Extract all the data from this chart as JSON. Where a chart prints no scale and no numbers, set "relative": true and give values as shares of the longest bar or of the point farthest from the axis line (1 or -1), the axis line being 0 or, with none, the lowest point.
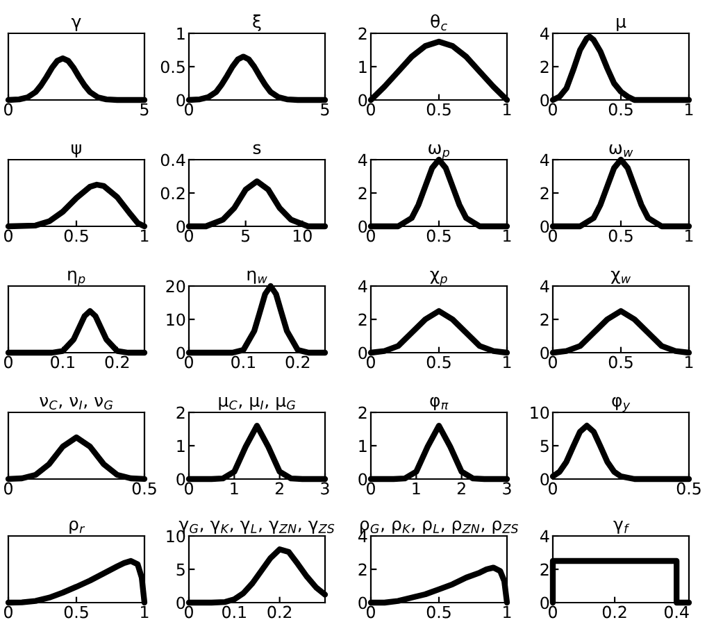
{
  "chart_data": [
    {
      "type": "line",
      "title": "γ",
      "relative": true,
      "tick_labels": "x",
      "color": "#000000",
      "xlim": [
        0,
        5
      ],
      "xticks": [
        0,
        5
      ],
      "x": [
        0,
        0.4,
        0.7,
        1.0,
        1.2,
        1.4,
        1.6,
        1.8,
        2.0,
        2.2,
        2.4,
        2.6,
        2.8,
        3.0,
        3.3,
        3.6,
        4,
        5
      ],
      "values": [
        0,
        0.015,
        0.06,
        0.19,
        0.35,
        0.55,
        0.77,
        0.94,
        1,
        0.94,
        0.77,
        0.55,
        0.35,
        0.19,
        0.06,
        0.015,
        0,
        0
      ]
    },
    {
      "type": "line",
      "title": "ξ",
      "color": "#000000",
      "xlim": [
        0,
        5
      ],
      "xticks": [
        0,
        5
      ],
      "ylim": [
        0,
        1
      ],
      "yticks": [
        0,
        0.5,
        1
      ],
      "x": [
        0,
        0.4,
        0.7,
        1.0,
        1.2,
        1.4,
        1.6,
        1.8,
        2.0,
        2.2,
        2.4,
        2.6,
        2.8,
        3.0,
        3.3,
        3.6,
        4,
        5
      ],
      "values": [
        0,
        0.01,
        0.04,
        0.12,
        0.23,
        0.36,
        0.5,
        0.61,
        0.65,
        0.61,
        0.5,
        0.36,
        0.23,
        0.12,
        0.04,
        0.01,
        0,
        0
      ]
    },
    {
      "type": "line",
      "title": "θ$_{c}$",
      "color": "#000000",
      "xlim": [
        0,
        1
      ],
      "xticks": [
        0,
        0.5,
        1
      ],
      "ylim": [
        0,
        2
      ],
      "yticks": [
        0,
        1,
        2
      ],
      "x": [
        0,
        0.1,
        0.2,
        0.3,
        0.4,
        0.5,
        0.6,
        0.7,
        0.8,
        0.9,
        1
      ],
      "values": [
        0,
        0.4,
        0.85,
        1.3,
        1.62,
        1.75,
        1.62,
        1.3,
        0.85,
        0.4,
        0
      ]
    },
    {
      "type": "line",
      "title": "μ",
      "color": "#000000",
      "xlim": [
        0,
        1
      ],
      "xticks": [
        0,
        0.5,
        1
      ],
      "ylim": [
        0,
        4
      ],
      "yticks": [
        0,
        2,
        4
      ],
      "x": [
        0,
        0.05,
        0.1,
        0.15,
        0.2,
        0.25,
        0.27,
        0.3,
        0.35,
        0.4,
        0.45,
        0.5,
        0.55,
        0.6,
        0.7,
        1
      ],
      "values": [
        0,
        0.2,
        0.7,
        1.8,
        3.0,
        3.7,
        3.8,
        3.6,
        2.9,
        1.9,
        1.0,
        0.5,
        0.2,
        0,
        0,
        0
      ]
    },
    {
      "type": "line",
      "title": "ψ",
      "relative": true,
      "tick_labels": "x",
      "color": "#000000",
      "xlim": [
        0,
        1
      ],
      "xticks": [
        0,
        0.5,
        1
      ],
      "x": [
        0,
        0.2,
        0.3,
        0.4,
        0.5,
        0.6,
        0.65,
        0.7,
        0.8,
        0.9,
        0.95,
        1
      ],
      "values": [
        0,
        0.02,
        0.12,
        0.35,
        0.68,
        0.95,
        1,
        0.97,
        0.7,
        0.28,
        0.08,
        0
      ]
    },
    {
      "type": "line",
      "title": "s",
      "color": "#000000",
      "xlim": [
        0,
        12
      ],
      "xticks": [
        0,
        5,
        10
      ],
      "ylim": [
        0,
        0.4
      ],
      "yticks": [
        0,
        0.2,
        0.4
      ],
      "x": [
        0,
        1.5,
        3,
        4,
        5,
        6,
        7,
        8,
        9,
        10.5,
        12
      ],
      "values": [
        0,
        0,
        0.04,
        0.11,
        0.22,
        0.27,
        0.22,
        0.11,
        0.04,
        0,
        0
      ]
    },
    {
      "type": "line",
      "title": "ω$_{p}$",
      "color": "#000000",
      "xlim": [
        0,
        1
      ],
      "xticks": [
        0,
        0.5,
        1
      ],
      "ylim": [
        0,
        4
      ],
      "yticks": [
        0,
        2,
        4
      ],
      "x": [
        0,
        0.2,
        0.3,
        0.35,
        0.4,
        0.45,
        0.5,
        0.55,
        0.6,
        0.65,
        0.7,
        0.8,
        1
      ],
      "values": [
        0,
        0,
        0.5,
        1.3,
        2.4,
        3.5,
        4.0,
        3.5,
        2.4,
        1.3,
        0.5,
        0,
        0
      ]
    },
    {
      "type": "line",
      "title": "ω$_{w}$",
      "color": "#000000",
      "xlim": [
        0,
        1
      ],
      "xticks": [
        0,
        0.5,
        1
      ],
      "ylim": [
        0,
        4
      ],
      "yticks": [
        0,
        2,
        4
      ],
      "x": [
        0,
        0.2,
        0.3,
        0.35,
        0.4,
        0.45,
        0.5,
        0.55,
        0.6,
        0.65,
        0.7,
        0.8,
        1
      ],
      "values": [
        0,
        0,
        0.5,
        1.3,
        2.4,
        3.5,
        4.0,
        3.5,
        2.4,
        1.3,
        0.5,
        0,
        0
      ]
    },
    {
      "type": "line",
      "title": "η$_{p}$",
      "relative": true,
      "tick_labels": "x",
      "color": "#000000",
      "xlim": [
        0,
        0.25
      ],
      "xticks": [
        0,
        0.1,
        0.2
      ],
      "x": [
        0,
        0.08,
        0.1,
        0.12,
        0.13,
        0.14,
        0.15,
        0.16,
        0.17,
        0.18,
        0.2,
        0.22,
        0.25
      ],
      "values": [
        0,
        0,
        0.04,
        0.32,
        0.6,
        0.88,
        1,
        0.88,
        0.6,
        0.32,
        0.04,
        0,
        0
      ]
    },
    {
      "type": "line",
      "title": "η$_{w}$",
      "color": "#000000",
      "xlim": [
        0,
        0.25
      ],
      "xticks": [
        0,
        0.1,
        0.2
      ],
      "ylim": [
        0,
        20
      ],
      "yticks": [
        0,
        10,
        20
      ],
      "x": [
        0,
        0.08,
        0.1,
        0.12,
        0.13,
        0.14,
        0.15,
        0.16,
        0.17,
        0.18,
        0.2,
        0.22,
        0.25
      ],
      "values": [
        0,
        0,
        0.8,
        6.5,
        12,
        17.6,
        20,
        17.6,
        12,
        6.5,
        0.8,
        0,
        0
      ]
    },
    {
      "type": "line",
      "title": "χ$_{p}$",
      "color": "#000000",
      "xlim": [
        0,
        1
      ],
      "xticks": [
        0,
        0.5,
        1
      ],
      "ylim": [
        0,
        4
      ],
      "yticks": [
        0,
        2,
        4
      ],
      "x": [
        0,
        0.1,
        0.2,
        0.3,
        0.4,
        0.5,
        0.6,
        0.7,
        0.8,
        0.9,
        1
      ],
      "values": [
        0,
        0.1,
        0.4,
        1.2,
        2.0,
        2.5,
        2.0,
        1.2,
        0.4,
        0.1,
        0
      ]
    },
    {
      "type": "line",
      "title": "χ$_{w}$",
      "color": "#000000",
      "xlim": [
        0,
        1
      ],
      "xticks": [
        0,
        0.5,
        1
      ],
      "ylim": [
        0,
        4
      ],
      "yticks": [
        0,
        2,
        4
      ],
      "x": [
        0,
        0.1,
        0.2,
        0.3,
        0.4,
        0.5,
        0.6,
        0.7,
        0.8,
        0.9,
        1
      ],
      "values": [
        0,
        0.1,
        0.4,
        1.2,
        2.0,
        2.5,
        2.0,
        1.2,
        0.4,
        0.1,
        0
      ]
    },
    {
      "type": "line",
      "title": "ν$_{C}$, ν$_{I}$, ν$_{G}$",
      "relative": true,
      "tick_labels": "x",
      "color": "#000000",
      "xlim": [
        0,
        0.5
      ],
      "xticks": [
        0,
        0.5
      ],
      "x": [
        0,
        0.05,
        0.1,
        0.15,
        0.2,
        0.25,
        0.3,
        0.35,
        0.4,
        0.45,
        0.5
      ],
      "values": [
        0.002,
        0.017,
        0.1,
        0.36,
        0.78,
        1,
        0.78,
        0.36,
        0.1,
        0.017,
        0.002
      ]
    },
    {
      "type": "line",
      "title": "μ$_{C}$, μ$_{I}$, μ$_{G}$",
      "color": "#000000",
      "xlim": [
        0,
        3
      ],
      "xticks": [
        0,
        1,
        2,
        3
      ],
      "ylim": [
        0,
        2
      ],
      "yticks": [
        0,
        1,
        2
      ],
      "x": [
        0,
        0.5,
        0.75,
        1,
        1.25,
        1.5,
        1.75,
        2,
        2.25,
        2.5,
        3
      ],
      "values": [
        0,
        0,
        0.02,
        0.22,
        0.97,
        1.6,
        0.97,
        0.22,
        0.02,
        0,
        0
      ]
    },
    {
      "type": "line",
      "title": "φ$_{π}$",
      "color": "#000000",
      "xlim": [
        0,
        3
      ],
      "xticks": [
        0,
        1,
        2,
        3
      ],
      "ylim": [
        0,
        2
      ],
      "yticks": [
        0,
        1,
        2
      ],
      "x": [
        0,
        0.5,
        0.75,
        1,
        1.25,
        1.5,
        1.75,
        2,
        2.25,
        2.5,
        3
      ],
      "values": [
        0,
        0,
        0.02,
        0.22,
        0.97,
        1.6,
        0.97,
        0.22,
        0.02,
        0,
        0
      ]
    },
    {
      "type": "line",
      "title": "φ$_{y}$",
      "color": "#000000",
      "xlim": [
        0,
        0.5
      ],
      "xticks": [
        0,
        0.5
      ],
      "ylim": [
        0,
        10
      ],
      "yticks": [
        0,
        5,
        10
      ],
      "x": [
        0,
        0.025,
        0.05,
        0.075,
        0.1,
        0.125,
        0.15,
        0.175,
        0.2,
        0.225,
        0.25,
        0.3,
        0.5
      ],
      "values": [
        0.4,
        1.1,
        2.6,
        4.9,
        7.1,
        8,
        7.1,
        4.9,
        2.6,
        1.1,
        0.4,
        0,
        0
      ]
    },
    {
      "type": "line",
      "title": "ρ$_{r}$",
      "relative": true,
      "tick_labels": "x",
      "color": "#000000",
      "xlim": [
        0,
        1
      ],
      "xticks": [
        0,
        0.5,
        1
      ],
      "x": [
        0,
        0.1,
        0.2,
        0.3,
        0.4,
        0.5,
        0.6,
        0.7,
        0.8,
        0.85,
        0.9,
        0.95,
        0.98,
        1
      ],
      "values": [
        0,
        0.005,
        0.04,
        0.12,
        0.24,
        0.38,
        0.53,
        0.7,
        0.87,
        0.95,
        1,
        0.92,
        0.6,
        0
      ]
    },
    {
      "type": "line",
      "title": "γ$_{G}$, γ$_{K}$, γ$_{L}$, γ$_{ZN}$, γ$_{ZS}$",
      "color": "#000000",
      "xlim": [
        0,
        0.3
      ],
      "xticks": [
        0,
        0.1,
        0.2
      ],
      "ylim": [
        0,
        10
      ],
      "yticks": [
        0,
        5,
        10
      ],
      "x": [
        0,
        0.05,
        0.08,
        0.1,
        0.12,
        0.14,
        0.16,
        0.18,
        0.2,
        0.22,
        0.24,
        0.26,
        0.28,
        0.3
      ],
      "values": [
        0,
        0,
        0.1,
        0.5,
        1.4,
        2.9,
        4.8,
        6.7,
        8,
        7.6,
        5.8,
        3.9,
        2.3,
        1.2
      ]
    },
    {
      "type": "line",
      "title": "ρ$_{G}$, ρ$_{K}$, ρ$_{L}$, ρ$_{ZN}$, ρ$_{ZS}$",
      "color": "#000000",
      "xlim": [
        0,
        1
      ],
      "xticks": [
        0,
        0.5,
        1
      ],
      "ylim": [
        0,
        4
      ],
      "yticks": [
        0,
        2,
        4
      ],
      "x": [
        0,
        0.1,
        0.2,
        0.3,
        0.4,
        0.5,
        0.6,
        0.7,
        0.8,
        0.85,
        0.9,
        0.95,
        0.98,
        1
      ],
      "values": [
        0,
        0,
        0.1,
        0.3,
        0.5,
        0.8,
        1.1,
        1.5,
        1.8,
        2.0,
        2.1,
        1.9,
        1.3,
        0
      ]
    },
    {
      "type": "line",
      "title": "γ$_{f}$",
      "color": "#000000",
      "xlim": [
        0,
        0.44
      ],
      "xticks": [
        0,
        0.2,
        0.4
      ],
      "ylim": [
        0,
        4
      ],
      "yticks": [
        0,
        2,
        4
      ],
      "x": [
        0,
        0,
        0.4,
        0.4,
        0.44
      ],
      "values": [
        0,
        2.5,
        2.5,
        0,
        0
      ]
    }
  ]
}
